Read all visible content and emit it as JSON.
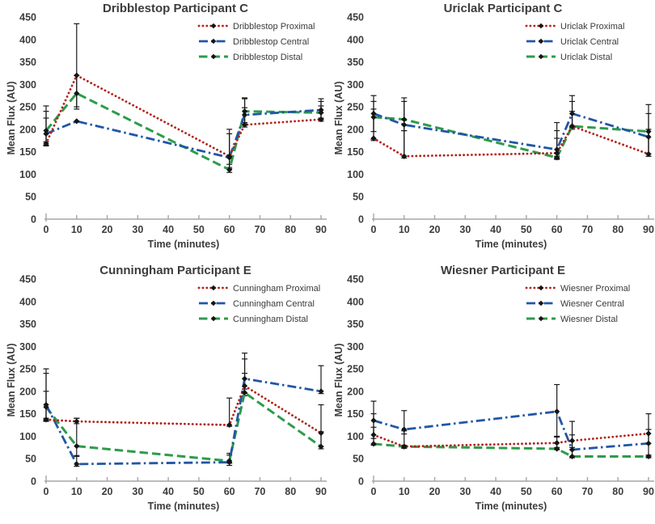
{
  "page": {
    "background": "#ffffff"
  },
  "style": {
    "marker": "diamond",
    "marker_color": "#151515",
    "error_bar_color": "#1a1a1a",
    "axis_color": "#a6a6a6",
    "text_color": "#3c3c3c",
    "legend_text_color": "#3a3a3a",
    "proximal_color": "#b2231b",
    "central_color": "#2156a6",
    "distal_color": "#2d9c4a"
  },
  "chart_data": [
    {
      "type": "line",
      "title": "Dribblestop Participant C",
      "xlabel": "Time (minutes)",
      "ylabel": "Mean Flux (AU)",
      "xlim": [
        0,
        90
      ],
      "ylim": [
        0,
        450
      ],
      "x_ticks": [
        0,
        10,
        20,
        30,
        40,
        50,
        60,
        70,
        80,
        90
      ],
      "y_ticks": [
        0,
        50,
        100,
        150,
        200,
        250,
        300,
        350,
        400,
        450
      ],
      "grid": false,
      "legend_position": "top-right",
      "x": [
        0,
        10,
        60,
        65,
        90
      ],
      "series": [
        {
          "name": "Dribblestop Proximal",
          "style": "dotted",
          "color": "#b2231b",
          "values": [
            168,
            320,
            140,
            210,
            222
          ],
          "err_lo": [
            163,
            250,
            112,
            205,
            218
          ],
          "err_hi": [
            225,
            435,
            200,
            248,
            252
          ]
        },
        {
          "name": "Dribblestop Central",
          "style": "dashdot",
          "color": "#2156a6",
          "values": [
            190,
            218,
            137,
            232,
            243
          ],
          "err_lo": [
            165,
            null,
            115,
            212,
            225
          ],
          "err_hi": [
            252,
            null,
            190,
            268,
            268
          ]
        },
        {
          "name": "Dribblestop Distal",
          "style": "dashed",
          "color": "#2d9c4a",
          "values": [
            197,
            280,
            110,
            240,
            237
          ],
          "err_lo": [
            172,
            245,
            104,
            215,
            222
          ],
          "err_hi": [
            240,
            320,
            122,
            270,
            262
          ]
        }
      ]
    },
    {
      "type": "line",
      "title": "Uriclak Participant C",
      "xlabel": "Time (minutes)",
      "ylabel": "Mean Flux (AU)",
      "xlim": [
        0,
        90
      ],
      "ylim": [
        0,
        450
      ],
      "x_ticks": [
        0,
        10,
        20,
        30,
        40,
        50,
        60,
        70,
        80,
        90
      ],
      "y_ticks": [
        0,
        50,
        100,
        150,
        200,
        250,
        300,
        350,
        400,
        450
      ],
      "grid": false,
      "legend_position": "top-right",
      "x": [
        0,
        10,
        60,
        65,
        90
      ],
      "series": [
        {
          "name": "Uriclak Proximal",
          "style": "dotted",
          "color": "#b2231b",
          "values": [
            180,
            140,
            147,
            207,
            145
          ],
          "err_lo": [
            175,
            136,
            140,
            203,
            140
          ],
          "err_hi": [
            245,
            197,
            197,
            240,
            200
          ]
        },
        {
          "name": "Uriclak Central",
          "style": "dashdot",
          "color": "#2156a6",
          "values": [
            235,
            210,
            155,
            235,
            183
          ],
          "err_lo": [
            178,
            140,
            135,
            205,
            140
          ],
          "err_hi": [
            275,
            262,
            215,
            275,
            235
          ]
        },
        {
          "name": "Uriclak Distal",
          "style": "dashed",
          "color": "#2d9c4a",
          "values": [
            227,
            222,
            137,
            207,
            195
          ],
          "err_lo": [
            195,
            197,
            133,
            200,
            145
          ],
          "err_hi": [
            262,
            270,
            180,
            262,
            255
          ]
        }
      ]
    },
    {
      "type": "line",
      "title": "Cunningham Participant E",
      "xlabel": "Time (minutes)",
      "ylabel": "Mean Flux (AU)",
      "xlim": [
        0,
        90
      ],
      "ylim": [
        0,
        450
      ],
      "x_ticks": [
        0,
        10,
        20,
        30,
        40,
        50,
        60,
        70,
        80,
        90
      ],
      "y_ticks": [
        0,
        50,
        100,
        150,
        200,
        250,
        300,
        350,
        400,
        450
      ],
      "grid": false,
      "legend_position": "top-right",
      "x": [
        0,
        10,
        60,
        65,
        90
      ],
      "series": [
        {
          "name": "Cunningham Proximal",
          "style": "dotted",
          "color": "#b2231b",
          "values": [
            137,
            133,
            125,
            212,
            107
          ],
          "err_lo": [
            133,
            128,
            122,
            205,
            77
          ],
          "err_hi": [
            200,
            140,
            185,
            272,
            170
          ]
        },
        {
          "name": "Cunningham Central",
          "style": "dashdot",
          "color": "#2156a6",
          "values": [
            170,
            38,
            42,
            228,
            200
          ],
          "err_lo": [
            135,
            33,
            35,
            195,
            195
          ],
          "err_hi": [
            250,
            57,
            58,
            285,
            257
          ]
        },
        {
          "name": "Cunningham Distal",
          "style": "dashed",
          "color": "#2d9c4a",
          "values": [
            165,
            78,
            45,
            197,
            77
          ],
          "err_lo": [
            140,
            55,
            40,
            190,
            72
          ],
          "err_hi": [
            240,
            140,
            62,
            240,
            110
          ]
        }
      ]
    },
    {
      "type": "line",
      "title": "Wiesner Participant E",
      "xlabel": "Time (minutes)",
      "ylabel": "Mean Flux (AU)",
      "xlim": [
        0,
        90
      ],
      "ylim": [
        0,
        450
      ],
      "x_ticks": [
        0,
        10,
        20,
        30,
        40,
        50,
        60,
        70,
        80,
        90
      ],
      "y_ticks": [
        0,
        50,
        100,
        150,
        200,
        250,
        300,
        350,
        400,
        450
      ],
      "grid": false,
      "legend_position": "top-right",
      "x": [
        0,
        10,
        60,
        65,
        90
      ],
      "series": [
        {
          "name": "Wiesner Proximal",
          "style": "dotted",
          "color": "#b2231b",
          "values": [
            103,
            77,
            85,
            90,
            106
          ],
          "err_lo": [
            83,
            73,
            70,
            70,
            84
          ],
          "err_hi": [
            150,
            112,
            100,
            133,
            150
          ]
        },
        {
          "name": "Wiesner Central",
          "style": "dashdot",
          "color": "#2156a6",
          "values": [
            135,
            115,
            155,
            70,
            84
          ],
          "err_lo": [
            95,
            105,
            98,
            55,
            55
          ],
          "err_hi": [
            178,
            157,
            215,
            103,
            115
          ]
        },
        {
          "name": "Wiesner Distal",
          "style": "dashed",
          "color": "#2d9c4a",
          "values": [
            83,
            77,
            72,
            55,
            55
          ],
          "err_lo": [
            80,
            74,
            70,
            52,
            52
          ],
          "err_hi": [
            120,
            80,
            75,
            75,
            58
          ]
        }
      ]
    }
  ]
}
